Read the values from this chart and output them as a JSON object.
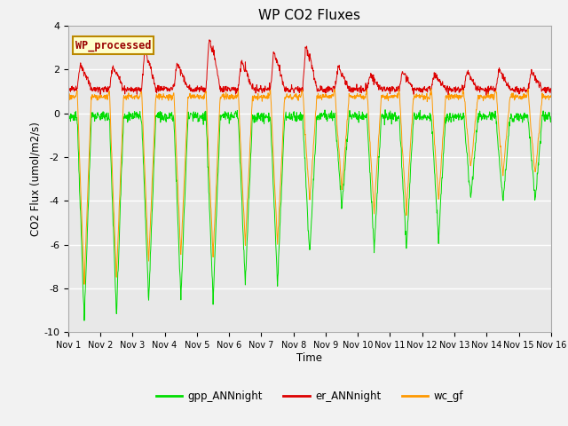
{
  "title": "WP CO2 Fluxes",
  "xlabel": "Time",
  "ylabel": "CO2 Flux (umol/m2/s)",
  "ylim": [
    -10,
    4
  ],
  "xlim": [
    0,
    15
  ],
  "legend_label": "WP_processed",
  "line_labels": [
    "gpp_ANNnight",
    "er_ANNnight",
    "wc_gf"
  ],
  "line_colors": [
    "#00dd00",
    "#dd0000",
    "#ff9900"
  ],
  "background_color": "#f2f2f2",
  "plot_bg_color": "#e8e8e8",
  "xtick_labels": [
    "Nov 1",
    "Nov 2",
    "Nov 3",
    "Nov 4",
    "Nov 5",
    "Nov 6",
    "Nov 7",
    "Nov 8",
    "Nov 9",
    "Nov 10",
    "Nov 11",
    "Nov 12",
    "Nov 13",
    "Nov 14",
    "Nov 15",
    "Nov 16"
  ],
  "xtick_positions": [
    0,
    1,
    2,
    3,
    4,
    5,
    6,
    7,
    8,
    9,
    10,
    11,
    12,
    13,
    14,
    15
  ],
  "ytick_positions": [
    -10,
    -8,
    -6,
    -4,
    -2,
    0,
    2,
    4
  ],
  "grid_color": "#ffffff",
  "num_points": 1440,
  "gpp_day_mins": [
    -9.5,
    -9.2,
    -8.6,
    -8.5,
    -8.6,
    -7.8,
    -7.8,
    -6.5,
    -4.3,
    -6.3,
    -6.2,
    -5.8,
    -4.0,
    -4.1,
    -4.0
  ],
  "er_day_peaks": [
    2.3,
    2.2,
    2.9,
    2.3,
    3.5,
    2.4,
    2.8,
    3.1,
    2.1,
    1.8,
    1.9,
    1.8,
    1.9,
    2.0,
    1.9
  ],
  "wc_day_mins": [
    -7.8,
    -7.5,
    -6.8,
    -6.5,
    -6.5,
    -6.0,
    -6.0,
    -4.0,
    -3.5,
    -4.5,
    -4.5,
    -4.0,
    -2.5,
    -2.8,
    -2.8
  ]
}
